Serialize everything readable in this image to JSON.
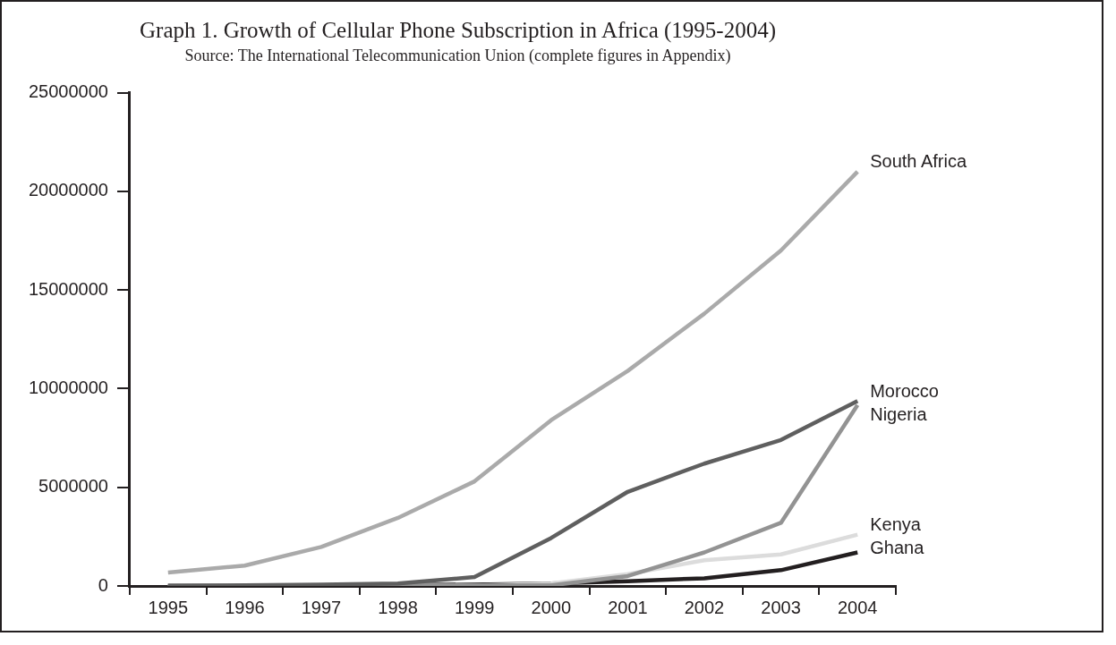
{
  "chart_data": {
    "type": "line",
    "title": "Graph 1. Growth of Cellular Phone Subscription in Africa (1995-2004)",
    "subtitle": "Source: The International Telecommunication Union (complete figures in Appendix)",
    "categories": [
      "1995",
      "1996",
      "1997",
      "1998",
      "1999",
      "2000",
      "2001",
      "2002",
      "2003",
      "2004"
    ],
    "series": [
      {
        "name": "South Africa",
        "color": "#aaaaaa",
        "values": [
          680000,
          1030000,
          1980000,
          3450000,
          5300000,
          8400000,
          10900000,
          13800000,
          17000000,
          21000000
        ]
      },
      {
        "name": "Morocco",
        "color": "#5f5f5f",
        "values": [
          10000,
          30000,
          70000,
          120000,
          450000,
          2430000,
          4770000,
          6200000,
          7400000,
          9370000
        ]
      },
      {
        "name": "Nigeria",
        "color": "#939393",
        "values": [
          10000,
          10000,
          10000,
          20000,
          30000,
          30000,
          500000,
          1700000,
          3200000,
          9170000
        ]
      },
      {
        "name": "Kenya",
        "color": "#dcdcdc",
        "values": [
          0,
          0,
          10000,
          10000,
          20000,
          130000,
          600000,
          1300000,
          1600000,
          2600000
        ]
      },
      {
        "name": "Ghana",
        "color": "#231f20",
        "values": [
          0,
          10000,
          20000,
          40000,
          70000,
          130000,
          240000,
          390000,
          800000,
          1700000
        ]
      }
    ],
    "ylim": [
      0,
      25000000
    ],
    "yticks": [
      0,
      5000000,
      10000000,
      15000000,
      20000000,
      25000000
    ],
    "grid": false,
    "legend": false,
    "marker": "none",
    "line_style": "solid"
  }
}
